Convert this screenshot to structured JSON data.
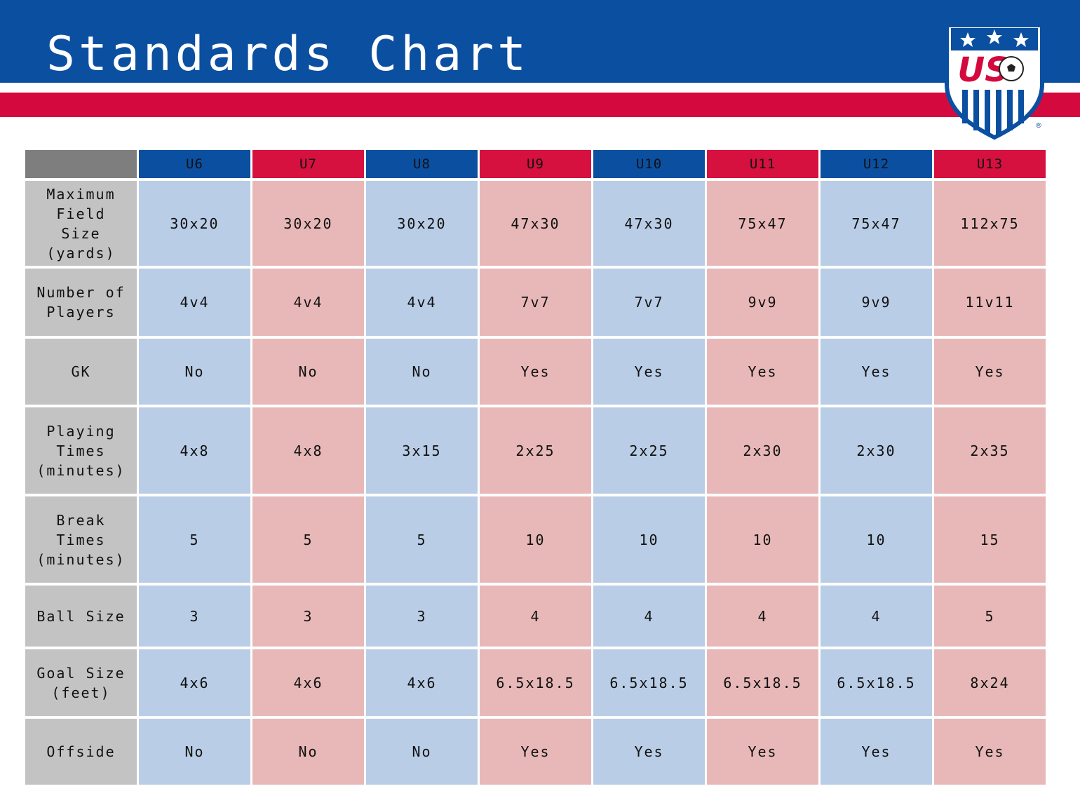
{
  "header": {
    "title": "Standards Chart",
    "logo_text": "US",
    "registered_mark": "®"
  },
  "colors": {
    "banner_blue": "#0b4fa1",
    "banner_red": "#d40a3f",
    "header_blue": "#0b4fa1",
    "header_red": "#d6103f",
    "cell_blue": "#b9cde6",
    "cell_pink": "#e8b8b8",
    "row_label_gray": "#c3c3c3",
    "corner_gray": "#7e7e7e"
  },
  "chart_data": {
    "type": "table",
    "columns": [
      "U6",
      "U7",
      "U8",
      "U9",
      "U10",
      "U11",
      "U12",
      "U13"
    ],
    "rows": [
      {
        "label": [
          "Maximum",
          "Field",
          "Size",
          "(yards)"
        ],
        "values": [
          "30x20",
          "30x20",
          "30x20",
          "47x30",
          "47x30",
          "75x47",
          "75x47",
          "112x75"
        ]
      },
      {
        "label": [
          "Number of",
          "Players"
        ],
        "values": [
          "4v4",
          "4v4",
          "4v4",
          "7v7",
          "7v7",
          "9v9",
          "9v9",
          "11v11"
        ]
      },
      {
        "label": [
          "GK"
        ],
        "values": [
          "No",
          "No",
          "No",
          "Yes",
          "Yes",
          "Yes",
          "Yes",
          "Yes"
        ]
      },
      {
        "label": [
          "Playing",
          "Times",
          "(minutes)"
        ],
        "values": [
          "4x8",
          "4x8",
          "3x15",
          "2x25",
          "2x25",
          "2x30",
          "2x30",
          "2x35"
        ]
      },
      {
        "label": [
          "Break",
          "Times",
          "(minutes)"
        ],
        "values": [
          "5",
          "5",
          "5",
          "10",
          "10",
          "10",
          "10",
          "15"
        ]
      },
      {
        "label": [
          "Ball Size"
        ],
        "values": [
          "3",
          "3",
          "3",
          "4",
          "4",
          "4",
          "4",
          "5"
        ]
      },
      {
        "label": [
          "Goal Size",
          "(feet)"
        ],
        "values": [
          "4x6",
          "4x6",
          "4x6",
          "6.5x18.5",
          "6.5x18.5",
          "6.5x18.5",
          "6.5x18.5",
          "8x24"
        ]
      },
      {
        "label": [
          "Offside"
        ],
        "values": [
          "No",
          "No",
          "No",
          "Yes",
          "Yes",
          "Yes",
          "Yes",
          "Yes"
        ]
      }
    ]
  }
}
